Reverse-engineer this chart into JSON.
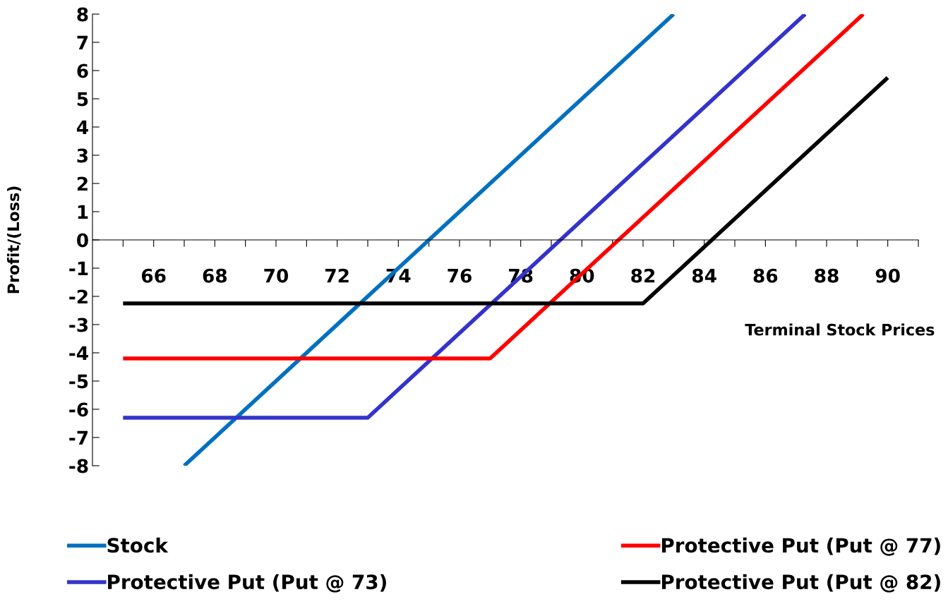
{
  "chart_data": {
    "type": "line",
    "xlabel": "Terminal Stock Prices",
    "ylabel": "Profit/(Loss)",
    "xlim": [
      64,
      91
    ],
    "ylim": [
      -8,
      8
    ],
    "xticks": [
      {
        "value": 65,
        "label": null
      },
      {
        "value": 66,
        "label": "66"
      },
      {
        "value": 67,
        "label": null
      },
      {
        "value": 68,
        "label": "68"
      },
      {
        "value": 69,
        "label": null
      },
      {
        "value": 70,
        "label": "70"
      },
      {
        "value": 71,
        "label": null
      },
      {
        "value": 72,
        "label": "72"
      },
      {
        "value": 73,
        "label": null
      },
      {
        "value": 74,
        "label": "74"
      },
      {
        "value": 75,
        "label": null
      },
      {
        "value": 76,
        "label": "76"
      },
      {
        "value": 77,
        "label": null
      },
      {
        "value": 78,
        "label": "78"
      },
      {
        "value": 79,
        "label": null
      },
      {
        "value": 80,
        "label": "80"
      },
      {
        "value": 81,
        "label": null
      },
      {
        "value": 82,
        "label": "82"
      },
      {
        "value": 83,
        "label": null
      },
      {
        "value": 84,
        "label": "84"
      },
      {
        "value": 85,
        "label": null
      },
      {
        "value": 86,
        "label": "86"
      },
      {
        "value": 87,
        "label": null
      },
      {
        "value": 88,
        "label": "88"
      },
      {
        "value": 89,
        "label": null
      },
      {
        "value": 90,
        "label": "90"
      },
      {
        "value": 91,
        "label": null
      }
    ],
    "yticks": [
      -8,
      -7,
      -6,
      -5,
      -4,
      -3,
      -2,
      -1,
      0,
      1,
      2,
      3,
      4,
      5,
      6,
      7,
      8
    ],
    "grid": false,
    "legend": "bottom",
    "marker": "none",
    "line_style": "solid",
    "series": [
      {
        "name": "Stock",
        "color": "#0070c0",
        "x": [
          67,
          83
        ],
        "values": [
          -8,
          8
        ]
      },
      {
        "name": "Protective Put (Put @ 73)",
        "color": "#3333cc",
        "x": [
          65,
          73,
          87.3
        ],
        "values": [
          -6.3,
          -6.3,
          8
        ]
      },
      {
        "name": "Protective Put (Put @ 77)",
        "color": "#ff0000",
        "x": [
          65,
          77,
          89.2
        ],
        "values": [
          -4.2,
          -4.2,
          8
        ]
      },
      {
        "name": "Protective Put (Put @ 82)",
        "color": "#000000",
        "x": [
          65,
          82,
          90
        ],
        "values": [
          -2.25,
          -2.25,
          5.75
        ]
      }
    ]
  }
}
